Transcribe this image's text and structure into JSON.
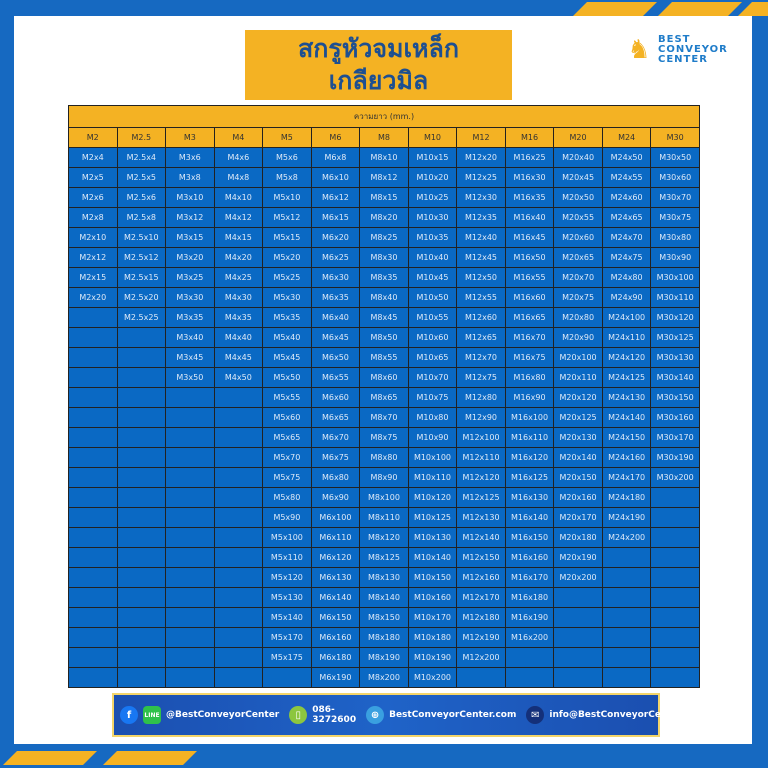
{
  "title": {
    "line1": "สกรูหัวจมเหล็ก",
    "line2": "เกลียวมิล"
  },
  "logo": {
    "line1": "BEST",
    "line2": "CONVEYOR",
    "line3": "CENTER"
  },
  "table": {
    "caption": "ความยาว (mm.)",
    "headers": [
      "M2",
      "M2.5",
      "M3",
      "M4",
      "M5",
      "M6",
      "M8",
      "M10",
      "M12",
      "M16",
      "M20",
      "M24",
      "M30"
    ],
    "columns": [
      [
        "M2x4",
        "M2x5",
        "M2x6",
        "M2x8",
        "M2x10",
        "M2x12",
        "M2x15",
        "M2x20"
      ],
      [
        "M2.5x4",
        "M2.5x5",
        "M2.5x6",
        "M2.5x8",
        "M2.5x10",
        "M2.5x12",
        "M2.5x15",
        "M2.5x20",
        "M2.5x25"
      ],
      [
        "M3x6",
        "M3x8",
        "M3x10",
        "M3x12",
        "M3x15",
        "M3x20",
        "M3x25",
        "M3x30",
        "M3x35",
        "M3x40",
        "M3x45",
        "M3x50"
      ],
      [
        "M4x6",
        "M4x8",
        "M4x10",
        "M4x12",
        "M4x15",
        "M4x20",
        "M4x25",
        "M4x30",
        "M4x35",
        "M4x40",
        "M4x45",
        "M4x50"
      ],
      [
        "M5x6",
        "M5x8",
        "M5x10",
        "M5x12",
        "M5x15",
        "M5x20",
        "M5x25",
        "M5x30",
        "M5x35",
        "M5x40",
        "M5x45",
        "M5x50",
        "M5x55",
        "M5x60",
        "M5x65",
        "M5x70",
        "M5x75",
        "M5x80",
        "M5x90",
        "M5x100",
        "M5x110",
        "M5x120",
        "M5x130",
        "M5x140",
        "M5x170",
        "M5x175"
      ],
      [
        "M6x8",
        "M6x10",
        "M6x12",
        "M6x15",
        "M6x20",
        "M6x25",
        "M6x30",
        "M6x35",
        "M6x40",
        "M6x45",
        "M6x50",
        "M6x55",
        "M6x60",
        "M6x65",
        "M6x70",
        "M6x75",
        "M6x80",
        "M6x90",
        "M6x100",
        "M6x110",
        "M6x120",
        "M6x130",
        "M6x140",
        "M6x150",
        "M6x160",
        "M6x180",
        "M6x190"
      ],
      [
        "M8x10",
        "M8x12",
        "M8x15",
        "M8x20",
        "M8x25",
        "M8x30",
        "M8x35",
        "M8x40",
        "M8x45",
        "M8x50",
        "M8x55",
        "M8x60",
        "M8x65",
        "M8x70",
        "M8x75",
        "M8x80",
        "M8x90",
        "M8x100",
        "M8x110",
        "M8x120",
        "M8x125",
        "M8x130",
        "M8x140",
        "M8x150",
        "M8x180",
        "M8x190",
        "M8x200"
      ],
      [
        "M10x15",
        "M10x20",
        "M10x25",
        "M10x30",
        "M10x35",
        "M10x40",
        "M10x45",
        "M10x50",
        "M10x55",
        "M10x60",
        "M10x65",
        "M10x70",
        "M10x75",
        "M10x80",
        "M10x90",
        "M10x100",
        "M10x110",
        "M10x120",
        "M10x125",
        "M10x130",
        "M10x140",
        "M10x150",
        "M10x160",
        "M10x170",
        "M10x180",
        "M10x190",
        "M10x200"
      ],
      [
        "M12x20",
        "M12x25",
        "M12x30",
        "M12x35",
        "M12x40",
        "M12x45",
        "M12x50",
        "M12x55",
        "M12x60",
        "M12x65",
        "M12x70",
        "M12x75",
        "M12x80",
        "M12x90",
        "M12x100",
        "M12x110",
        "M12x120",
        "M12x125",
        "M12x130",
        "M12x140",
        "M12x150",
        "M12x160",
        "M12x170",
        "M12x180",
        "M12x190",
        "M12x200"
      ],
      [
        "M16x25",
        "M16x30",
        "M16x35",
        "M16x40",
        "M16x45",
        "M16x50",
        "M16x55",
        "M16x60",
        "M16x65",
        "M16x70",
        "M16x75",
        "M16x80",
        "M16x90",
        "M16x100",
        "M16x110",
        "M16x120",
        "M16x125",
        "M16x130",
        "M16x140",
        "M16x150",
        "M16x160",
        "M16x170",
        "M16x180",
        "M16x190",
        "M16x200"
      ],
      [
        "M20x40",
        "M20x45",
        "M20x50",
        "M20x55",
        "M20x60",
        "M20x65",
        "M20x70",
        "M20x75",
        "M20x80",
        "M20x90",
        "M20x100",
        "M20x110",
        "M20x120",
        "M20x125",
        "M20x130",
        "M20x140",
        "M20x150",
        "M20x160",
        "M20x170",
        "M20x180",
        "M20x190",
        "M20x200"
      ],
      [
        "M24x50",
        "M24x55",
        "M24x60",
        "M24x65",
        "M24x70",
        "M24x75",
        "M24x80",
        "M24x90",
        "M24x100",
        "M24x110",
        "M24x120",
        "M24x125",
        "M24x130",
        "M24x140",
        "M24x150",
        "M24x160",
        "M24x170",
        "M24x180",
        "M24x190",
        "M24x200"
      ],
      [
        "M30x50",
        "M30x60",
        "M30x70",
        "M30x75",
        "M30x80",
        "M30x90",
        "M30x100",
        "M30x110",
        "M30x120",
        "M30x125",
        "M30x130",
        "M30x140",
        "M30x150",
        "M30x160",
        "M30x170",
        "M30x190",
        "M30x200"
      ]
    ]
  },
  "footer": {
    "social": "@BestConveyorCenter",
    "phone": "086-3272600",
    "website": "BestConveyorCenter.com",
    "email": "info@BestConveyorCenter.com"
  },
  "colors": {
    "brand_blue": "#1669c1",
    "cell_blue": "#0a69c4",
    "accent_yellow": "#f4b223"
  }
}
